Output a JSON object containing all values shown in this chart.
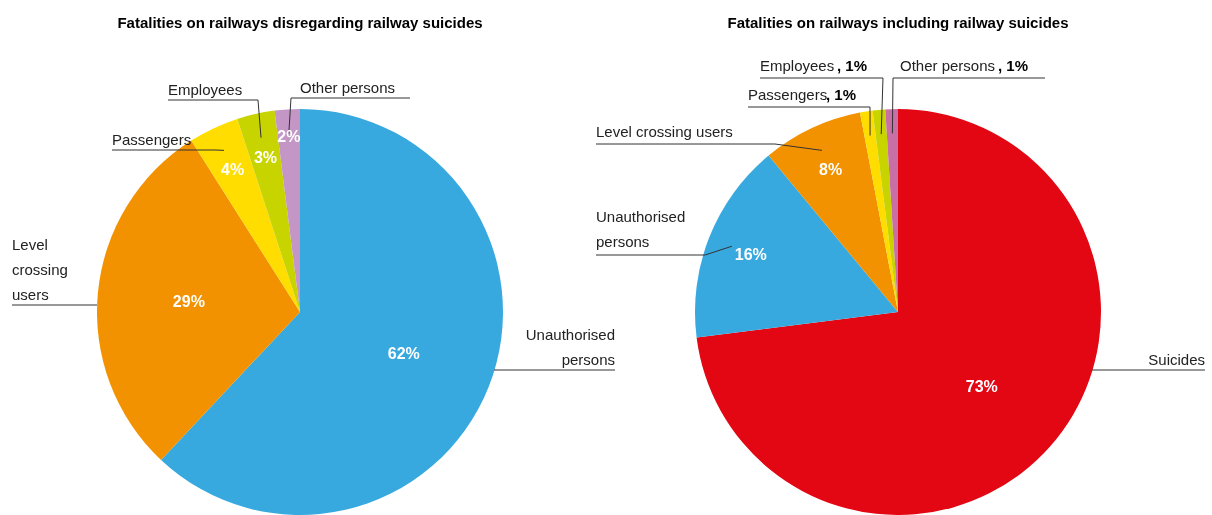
{
  "chart_data": [
    {
      "type": "pie",
      "title": "Fatalities on railways disregarding railway suicides",
      "categories": [
        "Unauthorised persons",
        "Level crossing users",
        "Passengers",
        "Employees",
        "Other persons"
      ],
      "values": [
        62,
        29,
        4,
        3,
        2
      ],
      "colors": [
        "#38a9df",
        "#f39200",
        "#ffdd00",
        "#c8d400",
        "#c396c6"
      ],
      "value_labels": [
        "62%",
        "29%",
        "4%",
        "3%",
        "2%"
      ]
    },
    {
      "type": "pie",
      "title": "Fatalities on railways including railway suicides",
      "categories": [
        "Suicides",
        "Unauthorised persons",
        "Level crossing users",
        "Passengers",
        "Employees",
        "Other persons"
      ],
      "values": [
        73,
        16,
        8,
        1,
        1,
        1
      ],
      "colors": [
        "#e30613",
        "#38a9df",
        "#f39200",
        "#ffdd00",
        "#c8d400",
        "#c86fa5"
      ],
      "value_labels": [
        "73%",
        "16%",
        "8%",
        ", 1%",
        ", 1%",
        ", 1%"
      ]
    }
  ]
}
